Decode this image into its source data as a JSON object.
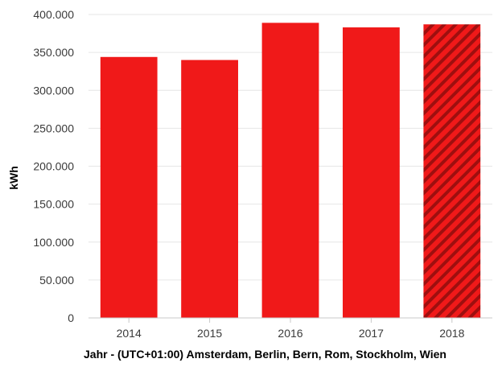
{
  "chart_data": {
    "type": "bar",
    "categories": [
      "2014",
      "2015",
      "2016",
      "2017",
      "2018"
    ],
    "values": [
      344000,
      340000,
      389000,
      383000,
      387000
    ],
    "hatched_category": "2018",
    "xlabel": "Jahr - (UTC+01:00) Amsterdam, Berlin, Bern, Rom, Stockholm, Wien",
    "ylabel": "kWh",
    "ylim": [
      0,
      400000
    ],
    "yticks": [
      "0",
      "50.000",
      "100.000",
      "150.000",
      "200.000",
      "250.000",
      "300.000",
      "350.000",
      "400.000"
    ],
    "grid": true,
    "legend": "none",
    "colors": {
      "bar": "#f01919",
      "hatch_dark": "#9e0f0f",
      "grid": "#e6e6e6",
      "axis": "#c8c8c8"
    }
  }
}
